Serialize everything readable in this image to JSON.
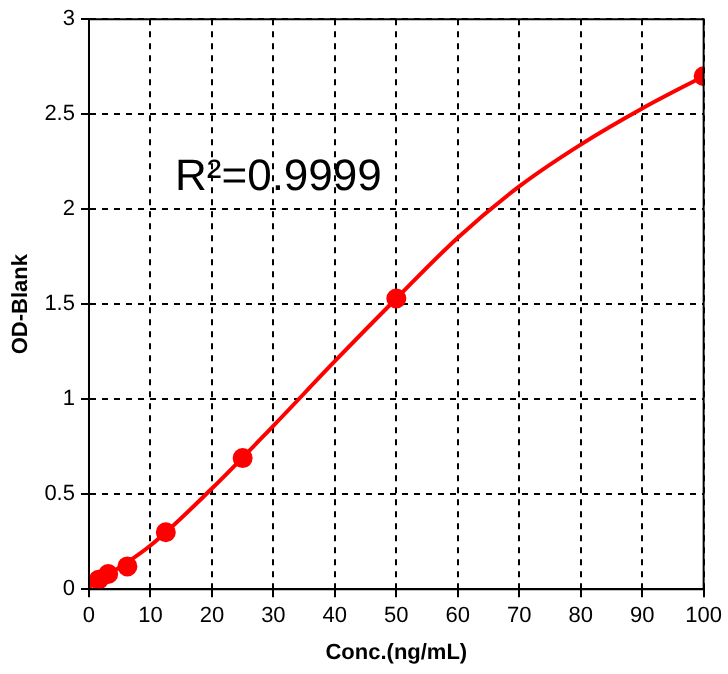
{
  "chart_data": {
    "type": "scatter",
    "xlabel": "Conc.(ng/mL)",
    "ylabel": "OD-Blank",
    "annotations": [
      "R²=0.9999"
    ],
    "series": [
      {
        "color": "#ff0000",
        "x": [
          1.56,
          3.125,
          6.25,
          12.5,
          25,
          50,
          100
        ],
        "values": [
          0.05,
          0.08,
          0.12,
          0.3,
          0.69,
          1.53,
          2.7
        ],
        "marker": "circle"
      },
      {
        "type": "line",
        "color": "#ff0000",
        "x": [
          0,
          10,
          20,
          30,
          40,
          50,
          60,
          70,
          80,
          90,
          100
        ],
        "values": [
          0.01,
          0.23,
          0.53,
          0.86,
          1.2,
          1.53,
          1.85,
          2.12,
          2.34,
          2.53,
          2.7
        ],
        "marker": "none"
      }
    ],
    "xlim": [
      0,
      100
    ],
    "xticks": [
      0,
      10,
      20,
      30,
      40,
      50,
      60,
      70,
      80,
      90,
      100
    ],
    "ylim": [
      0,
      3
    ],
    "yticks": [
      0,
      0.5,
      1,
      1.5,
      2,
      2.5,
      3
    ],
    "grid": true,
    "legend": false
  }
}
